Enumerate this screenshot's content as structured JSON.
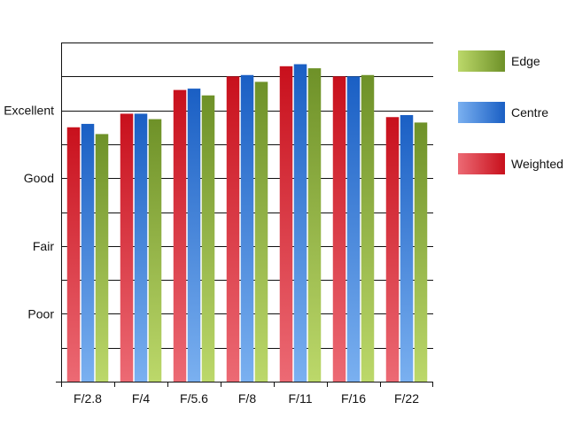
{
  "chart_data": {
    "type": "bar",
    "categories": [
      "F/2.8",
      "F/4",
      "F/5.6",
      "F/8",
      "F/11",
      "F/16",
      "F/22"
    ],
    "series": [
      {
        "name": "Weighted",
        "color": "#c8101c",
        "light": "#ec6a74",
        "values": [
          3.75,
          3.95,
          4.3,
          4.5,
          4.65,
          4.5,
          3.9
        ]
      },
      {
        "name": "Centre",
        "color": "#1a5fc4",
        "light": "#7ab0f0",
        "values": [
          3.8,
          3.95,
          4.32,
          4.52,
          4.68,
          4.5,
          3.93
        ]
      },
      {
        "name": "Edge",
        "color": "#6e9128",
        "light": "#bcd86a",
        "values": [
          3.65,
          3.87,
          4.22,
          4.42,
          4.62,
          4.52,
          3.82
        ]
      }
    ],
    "y_tick_labels": [
      {
        "label": "Poor",
        "value": 1
      },
      {
        "label": "Fair",
        "value": 2
      },
      {
        "label": "Good",
        "value": 3
      },
      {
        "label": "Excellent",
        "value": 4
      }
    ],
    "ylim": [
      0,
      5
    ],
    "grid_step": 0.5,
    "grid": true,
    "legend_position": "right",
    "legend_order": [
      "Edge",
      "Centre",
      "Weighted"
    ],
    "title": "",
    "xlabel": "",
    "ylabel": ""
  }
}
